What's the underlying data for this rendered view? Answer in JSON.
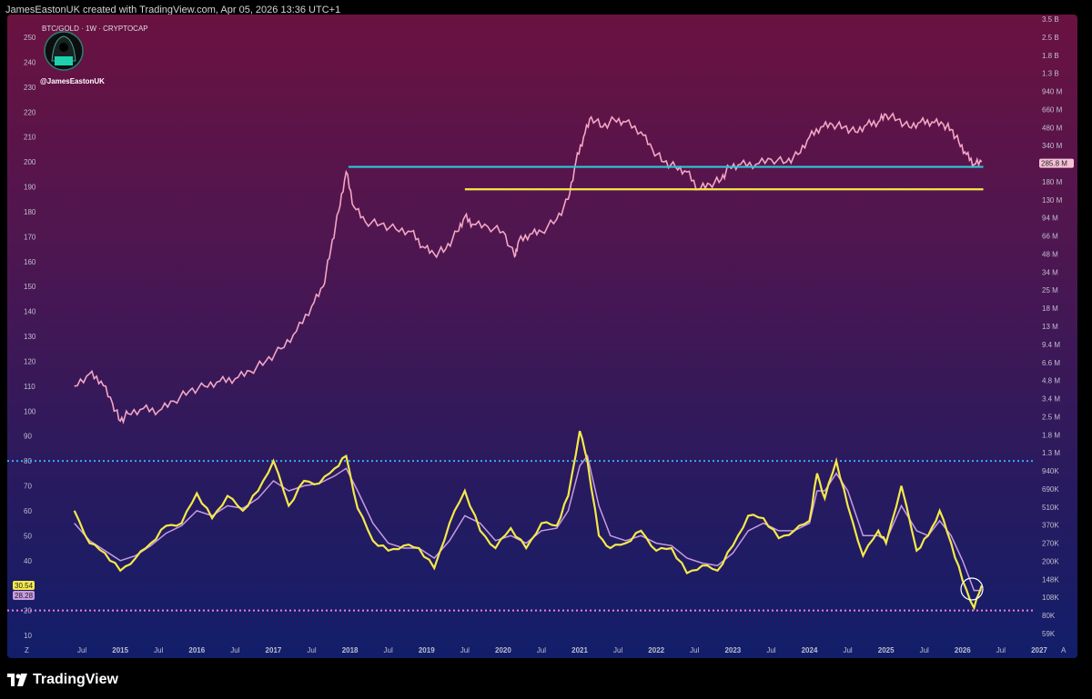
{
  "header": {
    "attribution": "JamesEastonUK created with TradingView.com, Apr 05, 2026 13:36 UTC+1"
  },
  "chart": {
    "title": "BTC/GOLD · 1W · CRYPTOCAP",
    "handle": "@JamesEastonUK",
    "price_badge": "285.8 M"
  },
  "footer": {
    "brand": "TradingView",
    "corner_left": "Z",
    "corner_right": "A"
  },
  "colors": {
    "price": "#f4a6c4",
    "yellow_line": "#f5e94a",
    "cyan_line": "#2ec6d6",
    "rsi": "#f5e94a",
    "rsi_ma": "#c79be0",
    "upper_band": "#35a8ff",
    "lower_band": "#f080d8"
  },
  "chart_data": [
    {
      "type": "line",
      "name": "BTC/GOLD price",
      "x_ticks": [
        "Jul",
        "2015",
        "Jul",
        "2016",
        "Jul",
        "2017",
        "Jul",
        "2018",
        "Jul",
        "2019",
        "Jul",
        "2020",
        "Jul",
        "2021",
        "Jul",
        "2022",
        "Jul",
        "2023",
        "Jul",
        "2024",
        "Jul",
        "2025",
        "Jul",
        "2026",
        "Jul",
        "2027"
      ],
      "y_ticks_left": [
        250,
        240,
        230,
        220,
        210,
        200,
        190,
        180,
        170,
        160,
        150,
        140,
        130,
        120,
        110,
        100,
        90,
        80,
        70,
        60,
        50,
        40,
        30,
        20,
        10
      ],
      "y_ticks_right": [
        "3.5 B",
        "2.5 B",
        "1.8 B",
        "1.3 B",
        "940 M",
        "660 M",
        "480 M",
        "340 M",
        "250 M",
        "180 M",
        "130 M",
        "94 M",
        "66 M",
        "48 M",
        "34 M",
        "25 M",
        "18 M",
        "13 M",
        "9.4 M",
        "6.6 M",
        "4.8 M",
        "3.4 M",
        "2.5 M",
        "1.8 M",
        "1.3 M",
        "940K",
        "690K",
        "510K",
        "370K",
        "270K",
        "200K",
        "148K",
        "108K",
        "80K",
        "59K"
      ],
      "x": [
        2014.4,
        2014.6,
        2014.75,
        2014.9,
        2015.0,
        2015.1,
        2015.3,
        2015.5,
        2015.7,
        2015.9,
        2016.1,
        2016.3,
        2016.5,
        2016.7,
        2016.9,
        2017.1,
        2017.3,
        2017.5,
        2017.65,
        2017.75,
        2017.85,
        2017.95,
        2018.05,
        2018.2,
        2018.4,
        2018.6,
        2018.8,
        2018.95,
        2019.1,
        2019.25,
        2019.4,
        2019.5,
        2019.6,
        2019.8,
        2020.0,
        2020.15,
        2020.2,
        2020.35,
        2020.5,
        2020.7,
        2020.85,
        2020.95,
        2021.05,
        2021.15,
        2021.3,
        2021.45,
        2021.6,
        2021.8,
        2021.95,
        2022.1,
        2022.25,
        2022.4,
        2022.55,
        2022.7,
        2022.85,
        2022.95,
        2023.1,
        2023.3,
        2023.5,
        2023.7,
        2023.85,
        2024.0,
        2024.15,
        2024.3,
        2024.45,
        2024.6,
        2024.75,
        2024.9,
        2025.0,
        2025.15,
        2025.3,
        2025.45,
        2025.6,
        2025.75,
        2025.85,
        2025.95,
        2026.05,
        2026.15,
        2026.25
      ],
      "y": [
        110,
        115,
        112,
        103,
        96,
        99,
        101,
        100,
        104,
        108,
        110,
        112,
        113,
        116,
        120,
        125,
        132,
        142,
        150,
        165,
        180,
        196,
        182,
        176,
        175,
        173,
        172,
        166,
        163,
        165,
        172,
        178,
        175,
        174,
        172,
        162,
        168,
        171,
        172,
        177,
        185,
        200,
        210,
        218,
        214,
        217,
        216,
        212,
        205,
        200,
        198,
        196,
        189,
        191,
        193,
        198,
        199,
        199,
        201,
        200,
        203,
        210,
        214,
        215,
        214,
        212,
        215,
        216,
        219,
        217,
        214,
        216,
        216,
        215,
        213,
        208,
        203,
        199,
        200
      ],
      "hlines": [
        {
          "name": "cyan resistance",
          "y": 198
        },
        {
          "name": "yellow support",
          "y": 189
        }
      ],
      "ylim": [
        10,
        250
      ]
    },
    {
      "type": "line",
      "name": "RSI",
      "x": [
        2014.4,
        2014.6,
        2014.8,
        2015.0,
        2015.2,
        2015.4,
        2015.6,
        2015.8,
        2016.0,
        2016.2,
        2016.4,
        2016.6,
        2016.8,
        2017.0,
        2017.2,
        2017.4,
        2017.6,
        2017.8,
        2017.95,
        2018.1,
        2018.3,
        2018.5,
        2018.7,
        2018.9,
        2019.1,
        2019.3,
        2019.5,
        2019.7,
        2019.9,
        2020.1,
        2020.3,
        2020.5,
        2020.7,
        2020.85,
        2021.0,
        2021.1,
        2021.25,
        2021.4,
        2021.6,
        2021.8,
        2022.0,
        2022.2,
        2022.4,
        2022.6,
        2022.8,
        2023.0,
        2023.2,
        2023.4,
        2023.6,
        2023.8,
        2024.0,
        2024.1,
        2024.2,
        2024.35,
        2024.5,
        2024.7,
        2024.9,
        2025.0,
        2025.2,
        2025.4,
        2025.55,
        2025.7,
        2025.85,
        2026.0,
        2026.15,
        2026.25
      ],
      "rsi": [
        60,
        47,
        43,
        36,
        41,
        47,
        54,
        55,
        67,
        57,
        66,
        60,
        68,
        80,
        62,
        72,
        71,
        77,
        82,
        61,
        48,
        44,
        46,
        45,
        37,
        55,
        68,
        52,
        45,
        53,
        45,
        55,
        54,
        66,
        92,
        80,
        50,
        45,
        47,
        52,
        44,
        45,
        35,
        38,
        36,
        46,
        58,
        57,
        49,
        52,
        56,
        75,
        65,
        80,
        62,
        42,
        52,
        47,
        70,
        44,
        50,
        60,
        47,
        32,
        21,
        30
      ],
      "rsi_ma": [
        55,
        48,
        44,
        40,
        42,
        46,
        51,
        54,
        60,
        58,
        62,
        61,
        65,
        72,
        68,
        70,
        71,
        74,
        77,
        68,
        55,
        47,
        45,
        45,
        41,
        48,
        58,
        55,
        48,
        50,
        47,
        52,
        53,
        60,
        78,
        82,
        62,
        50,
        48,
        50,
        47,
        46,
        41,
        39,
        38,
        43,
        52,
        55,
        52,
        52,
        55,
        68,
        68,
        75,
        68,
        50,
        50,
        48,
        62,
        52,
        50,
        56,
        50,
        40,
        28,
        28
      ],
      "rsi_current": "30.54",
      "rsi_ma_current": "28.28",
      "band_upper": 80,
      "band_lower": 20
    }
  ]
}
